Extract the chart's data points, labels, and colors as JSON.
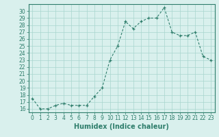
{
  "x": [
    0,
    1,
    2,
    3,
    4,
    5,
    6,
    7,
    8,
    9,
    10,
    11,
    12,
    13,
    14,
    15,
    16,
    17,
    18,
    19,
    20,
    21,
    22,
    23
  ],
  "y": [
    17.5,
    16.0,
    16.0,
    16.5,
    16.8,
    16.5,
    16.5,
    16.5,
    17.8,
    19.0,
    23.0,
    25.0,
    28.5,
    27.5,
    28.5,
    29.0,
    29.0,
    30.5,
    27.0,
    26.5,
    26.5,
    27.0,
    23.5,
    23.0
  ],
  "line_color": "#2e7d6b",
  "marker": "+",
  "marker_size": 3,
  "bg_color": "#d9f0ed",
  "grid_color": "#a8d5ce",
  "xlabel": "Humidex (Indice chaleur)",
  "xlim": [
    -0.5,
    23.5
  ],
  "ylim": [
    15.5,
    31.0
  ],
  "yticks": [
    16,
    17,
    18,
    19,
    20,
    21,
    22,
    23,
    24,
    25,
    26,
    27,
    28,
    29,
    30
  ],
  "xticks": [
    0,
    1,
    2,
    3,
    4,
    5,
    6,
    7,
    8,
    9,
    10,
    11,
    12,
    13,
    14,
    15,
    16,
    17,
    18,
    19,
    20,
    21,
    22,
    23
  ],
  "tick_color": "#2e7d6b",
  "axis_color": "#2e7d6b",
  "tick_fontsize": 5.5,
  "xlabel_fontsize": 7
}
